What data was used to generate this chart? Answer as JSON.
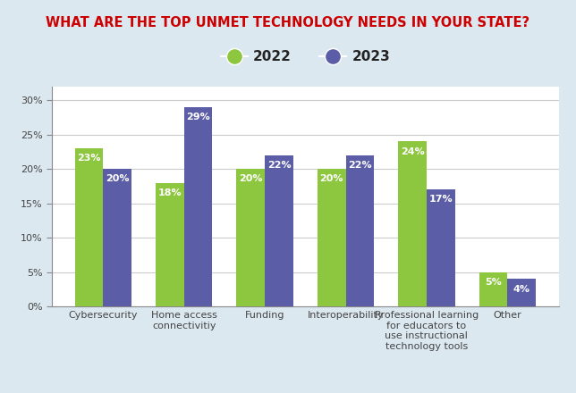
{
  "title": "WHAT ARE THE TOP UNMET TECHNOLOGY NEEDS IN YOUR STATE?",
  "title_color": "#cc0000",
  "title_fontsize": 10.5,
  "categories": [
    "Cybersecurity",
    "Home access\nconnectivitiy",
    "Funding",
    "Interoperability",
    "Professional learning\nfor educators to\nuse instructional\ntechnology tools",
    "Other"
  ],
  "values_2022": [
    23,
    18,
    20,
    20,
    24,
    5
  ],
  "values_2023": [
    20,
    29,
    22,
    22,
    17,
    4
  ],
  "color_2022": "#8dc63f",
  "color_2023": "#5b5ea6",
  "legend_labels": [
    "2022",
    "2023"
  ],
  "ylabel_ticks": [
    "0%",
    "5%",
    "10%",
    "15%",
    "20%",
    "25%",
    "30%"
  ],
  "ytick_values": [
    0,
    5,
    10,
    15,
    20,
    25,
    30
  ],
  "ylim": [
    0,
    32
  ],
  "figure_bg_color": "#dce8f0",
  "plot_bg_color": "#ffffff",
  "bar_width": 0.35,
  "label_fontsize": 8,
  "tick_fontsize": 8,
  "legend_fontsize": 11,
  "grid_color": "#cccccc",
  "spine_color": "#888888"
}
